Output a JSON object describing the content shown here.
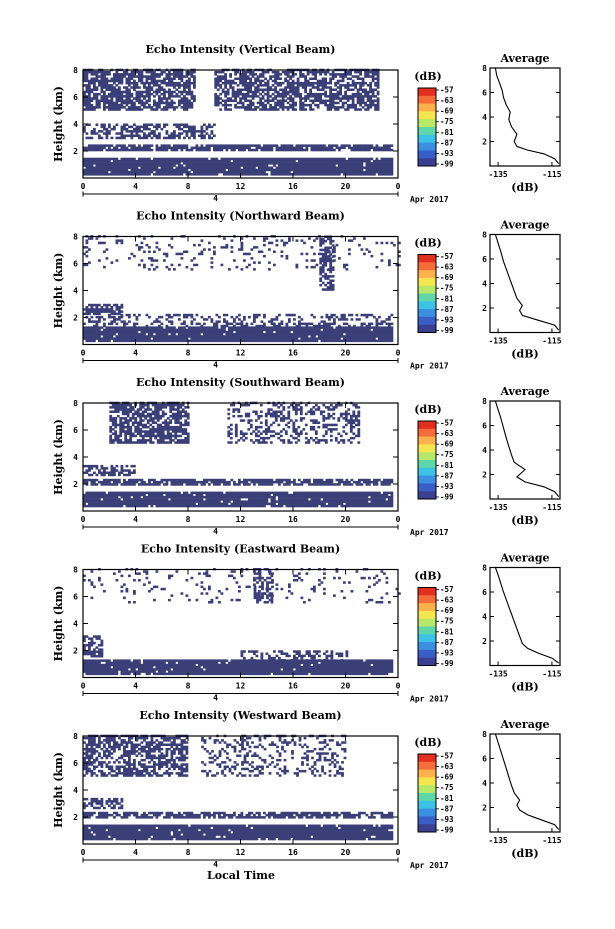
{
  "figure": {
    "xlabel_bottom": "Local Time",
    "date_label": "Apr 2017",
    "day_label": "4",
    "colorbar_unit": "(dB)",
    "colorbar_ticks": [
      "-57",
      "-63",
      "-69",
      "-75",
      "-81",
      "-87",
      "-93",
      "-99"
    ],
    "colorbar_colors": [
      "#e23020",
      "#f46d3a",
      "#fdb14a",
      "#f5e64f",
      "#b7e86a",
      "#5fd6a8",
      "#3cc2e4",
      "#3b8ee0",
      "#3a5ec8",
      "#3a3f90"
    ],
    "mark_color": "#3b3f78"
  },
  "chart_data": [
    {
      "type": "heatmap",
      "title": "Echo Intensity (Vertical Beam)",
      "ylabel": "Height (km)",
      "xticks": [
        "0",
        "4",
        "8",
        "12",
        "16",
        "20",
        "0"
      ],
      "yticks": [
        "2",
        "4",
        "6",
        "8"
      ],
      "xlim": [
        0,
        24
      ],
      "ylim": [
        0,
        8
      ],
      "bands": [
        {
          "y0": 0.2,
          "y1": 1.4,
          "x0": 0,
          "x1": 23.5,
          "density": 0.95
        },
        {
          "y0": 2.0,
          "y1": 2.4,
          "x0": 0,
          "x1": 23.5,
          "density": 0.85
        },
        {
          "y0": 2.9,
          "y1": 3.9,
          "x0": 0,
          "x1": 10,
          "density": 0.55
        },
        {
          "y0": 5.0,
          "y1": 8.0,
          "x0": 0,
          "x1": 8.5,
          "density": 0.75
        },
        {
          "y0": 5.0,
          "y1": 8.0,
          "x0": 10,
          "x1": 22.5,
          "density": 0.65
        }
      ],
      "profile": {
        "title": "Average",
        "xlabel": "(dB)",
        "xticks": [
          "-135",
          "-115"
        ],
        "yticks": [
          "2",
          "4",
          "6",
          "8"
        ],
        "xlim": [
          -138,
          -112
        ],
        "ylim": [
          0,
          8
        ],
        "x": [
          -112.5,
          -114,
          -118,
          -124,
          -128,
          -129,
          -128,
          -130,
          -131,
          -130.5,
          -132,
          -133,
          -133.5,
          -134.5,
          -135.5,
          -136
        ],
        "y": [
          0.2,
          0.6,
          1.0,
          1.3,
          1.6,
          2.0,
          2.6,
          3.2,
          3.8,
          4.4,
          5.0,
          5.6,
          6.2,
          6.8,
          7.4,
          8.0
        ]
      }
    },
    {
      "type": "heatmap",
      "title": "Echo Intensity (Northward Beam)",
      "ylabel": "Height (km)",
      "xticks": [
        "0",
        "4",
        "8",
        "12",
        "16",
        "20",
        "0"
      ],
      "yticks": [
        "2",
        "4",
        "6",
        "8"
      ],
      "xlim": [
        0,
        24
      ],
      "ylim": [
        0,
        8
      ],
      "bands": [
        {
          "y0": 0.2,
          "y1": 1.3,
          "x0": 0,
          "x1": 23.5,
          "density": 0.95
        },
        {
          "y0": 1.3,
          "y1": 2.2,
          "x0": 0,
          "x1": 23.5,
          "density": 0.35
        },
        {
          "y0": 2.2,
          "y1": 3.0,
          "x0": 0,
          "x1": 3,
          "density": 0.6
        },
        {
          "y0": 5.5,
          "y1": 8.0,
          "x0": 0,
          "x1": 24,
          "density": 0.12
        },
        {
          "y0": 4.0,
          "y1": 8.0,
          "x0": 18,
          "x1": 19,
          "density": 0.7
        }
      ],
      "profile": {
        "title": "Average",
        "xlabel": "(dB)",
        "xticks": [
          "-135",
          "-115"
        ],
        "yticks": [
          "2",
          "4",
          "6",
          "8"
        ],
        "xlim": [
          -138,
          -112
        ],
        "ylim": [
          0,
          8
        ],
        "x": [
          -112.5,
          -114,
          -120,
          -126,
          -127,
          -126,
          -128,
          -129,
          -130,
          -131,
          -132,
          -133,
          -134,
          -135,
          -136
        ],
        "y": [
          0.2,
          0.6,
          1.0,
          1.4,
          1.8,
          2.2,
          2.8,
          3.4,
          4.0,
          4.6,
          5.2,
          5.8,
          6.6,
          7.3,
          8.0
        ]
      }
    },
    {
      "type": "heatmap",
      "title": "Echo Intensity (Southward Beam)",
      "ylabel": "Height (km)",
      "xticks": [
        "0",
        "4",
        "8",
        "12",
        "16",
        "20",
        "0"
      ],
      "yticks": [
        "2",
        "4",
        "6",
        "8"
      ],
      "xlim": [
        0,
        24
      ],
      "ylim": [
        0,
        8
      ],
      "bands": [
        {
          "y0": 0.3,
          "y1": 1.3,
          "x0": 0,
          "x1": 23.5,
          "density": 0.95
        },
        {
          "y0": 1.9,
          "y1": 2.3,
          "x0": 0,
          "x1": 23.5,
          "density": 0.8
        },
        {
          "y0": 2.6,
          "y1": 3.3,
          "x0": 0,
          "x1": 4,
          "density": 0.6
        },
        {
          "y0": 5.0,
          "y1": 8.0,
          "x0": 2,
          "x1": 8,
          "density": 0.7
        },
        {
          "y0": 5.0,
          "y1": 8.0,
          "x0": 11,
          "x1": 21,
          "density": 0.35
        }
      ],
      "profile": {
        "title": "Average",
        "xlabel": "(dB)",
        "xticks": [
          "-135",
          "-115"
        ],
        "yticks": [
          "2",
          "4",
          "6",
          "8"
        ],
        "xlim": [
          -138,
          -112
        ],
        "ylim": [
          0,
          8
        ],
        "x": [
          -112.5,
          -114,
          -118,
          -125,
          -128,
          -127,
          -125,
          -129,
          -130,
          -131,
          -132,
          -133,
          -134,
          -135,
          -136
        ],
        "y": [
          0.2,
          0.6,
          1.0,
          1.4,
          1.8,
          2.0,
          2.4,
          3.0,
          3.6,
          4.3,
          5.0,
          5.8,
          6.6,
          7.3,
          8.0
        ]
      }
    },
    {
      "type": "heatmap",
      "title": "Echo Intensity (Eastward Beam)",
      "ylabel": "Height (km)",
      "xticks": [
        "0",
        "4",
        "8",
        "12",
        "16",
        "20",
        "0"
      ],
      "yticks": [
        "2",
        "4",
        "6",
        "8"
      ],
      "xlim": [
        0,
        24
      ],
      "ylim": [
        0,
        8
      ],
      "bands": [
        {
          "y0": 0.2,
          "y1": 1.2,
          "x0": 0,
          "x1": 23.5,
          "density": 0.95
        },
        {
          "y0": 1.2,
          "y1": 2.0,
          "x0": 12,
          "x1": 20,
          "density": 0.4
        },
        {
          "y0": 1.5,
          "y1": 3.0,
          "x0": 0,
          "x1": 1.5,
          "density": 0.6
        },
        {
          "y0": 5.5,
          "y1": 8.0,
          "x0": 0,
          "x1": 24,
          "density": 0.08
        },
        {
          "y0": 5.5,
          "y1": 8.0,
          "x0": 13,
          "x1": 14.5,
          "density": 0.55
        }
      ],
      "profile": {
        "title": "Average",
        "xlabel": "(dB)",
        "xticks": [
          "-135",
          "-115"
        ],
        "yticks": [
          "2",
          "4",
          "6",
          "8"
        ],
        "xlim": [
          -138,
          -112
        ],
        "ylim": [
          0,
          8
        ],
        "x": [
          -112.5,
          -115,
          -120,
          -124,
          -126,
          -127,
          -128,
          -129,
          -130,
          -131,
          -132,
          -133,
          -134,
          -135,
          -136
        ],
        "y": [
          0.2,
          0.6,
          1.0,
          1.4,
          1.8,
          2.4,
          3.0,
          3.6,
          4.2,
          4.8,
          5.4,
          6.0,
          6.7,
          7.4,
          8.0
        ]
      }
    },
    {
      "type": "heatmap",
      "title": "Echo Intensity (Westward Beam)",
      "ylabel": "Height (km)",
      "xticks": [
        "0",
        "4",
        "8",
        "12",
        "16",
        "20",
        "0"
      ],
      "yticks": [
        "2",
        "4",
        "6",
        "8"
      ],
      "xlim": [
        0,
        24
      ],
      "ylim": [
        0,
        8
      ],
      "bands": [
        {
          "y0": 0.3,
          "y1": 1.3,
          "x0": 0,
          "x1": 23.5,
          "density": 0.95
        },
        {
          "y0": 1.9,
          "y1": 2.3,
          "x0": 0,
          "x1": 23.5,
          "density": 0.7
        },
        {
          "y0": 2.6,
          "y1": 3.3,
          "x0": 0,
          "x1": 3,
          "density": 0.6
        },
        {
          "y0": 5.0,
          "y1": 8.0,
          "x0": 0,
          "x1": 8,
          "density": 0.6
        },
        {
          "y0": 5.0,
          "y1": 8.0,
          "x0": 9,
          "x1": 20,
          "density": 0.25
        }
      ],
      "profile": {
        "title": "Average",
        "xlabel": "(dB)",
        "xticks": [
          "-135",
          "-115"
        ],
        "yticks": [
          "2",
          "4",
          "6",
          "8"
        ],
        "xlim": [
          -138,
          -112
        ],
        "ylim": [
          0,
          8
        ],
        "x": [
          -112.5,
          -114,
          -119,
          -124,
          -127,
          -128,
          -127,
          -129,
          -130,
          -131,
          -132,
          -133,
          -134,
          -135,
          -136
        ],
        "y": [
          0.2,
          0.6,
          1.0,
          1.4,
          1.8,
          2.2,
          2.6,
          3.2,
          3.8,
          4.5,
          5.2,
          5.9,
          6.6,
          7.3,
          8.0
        ]
      }
    }
  ]
}
